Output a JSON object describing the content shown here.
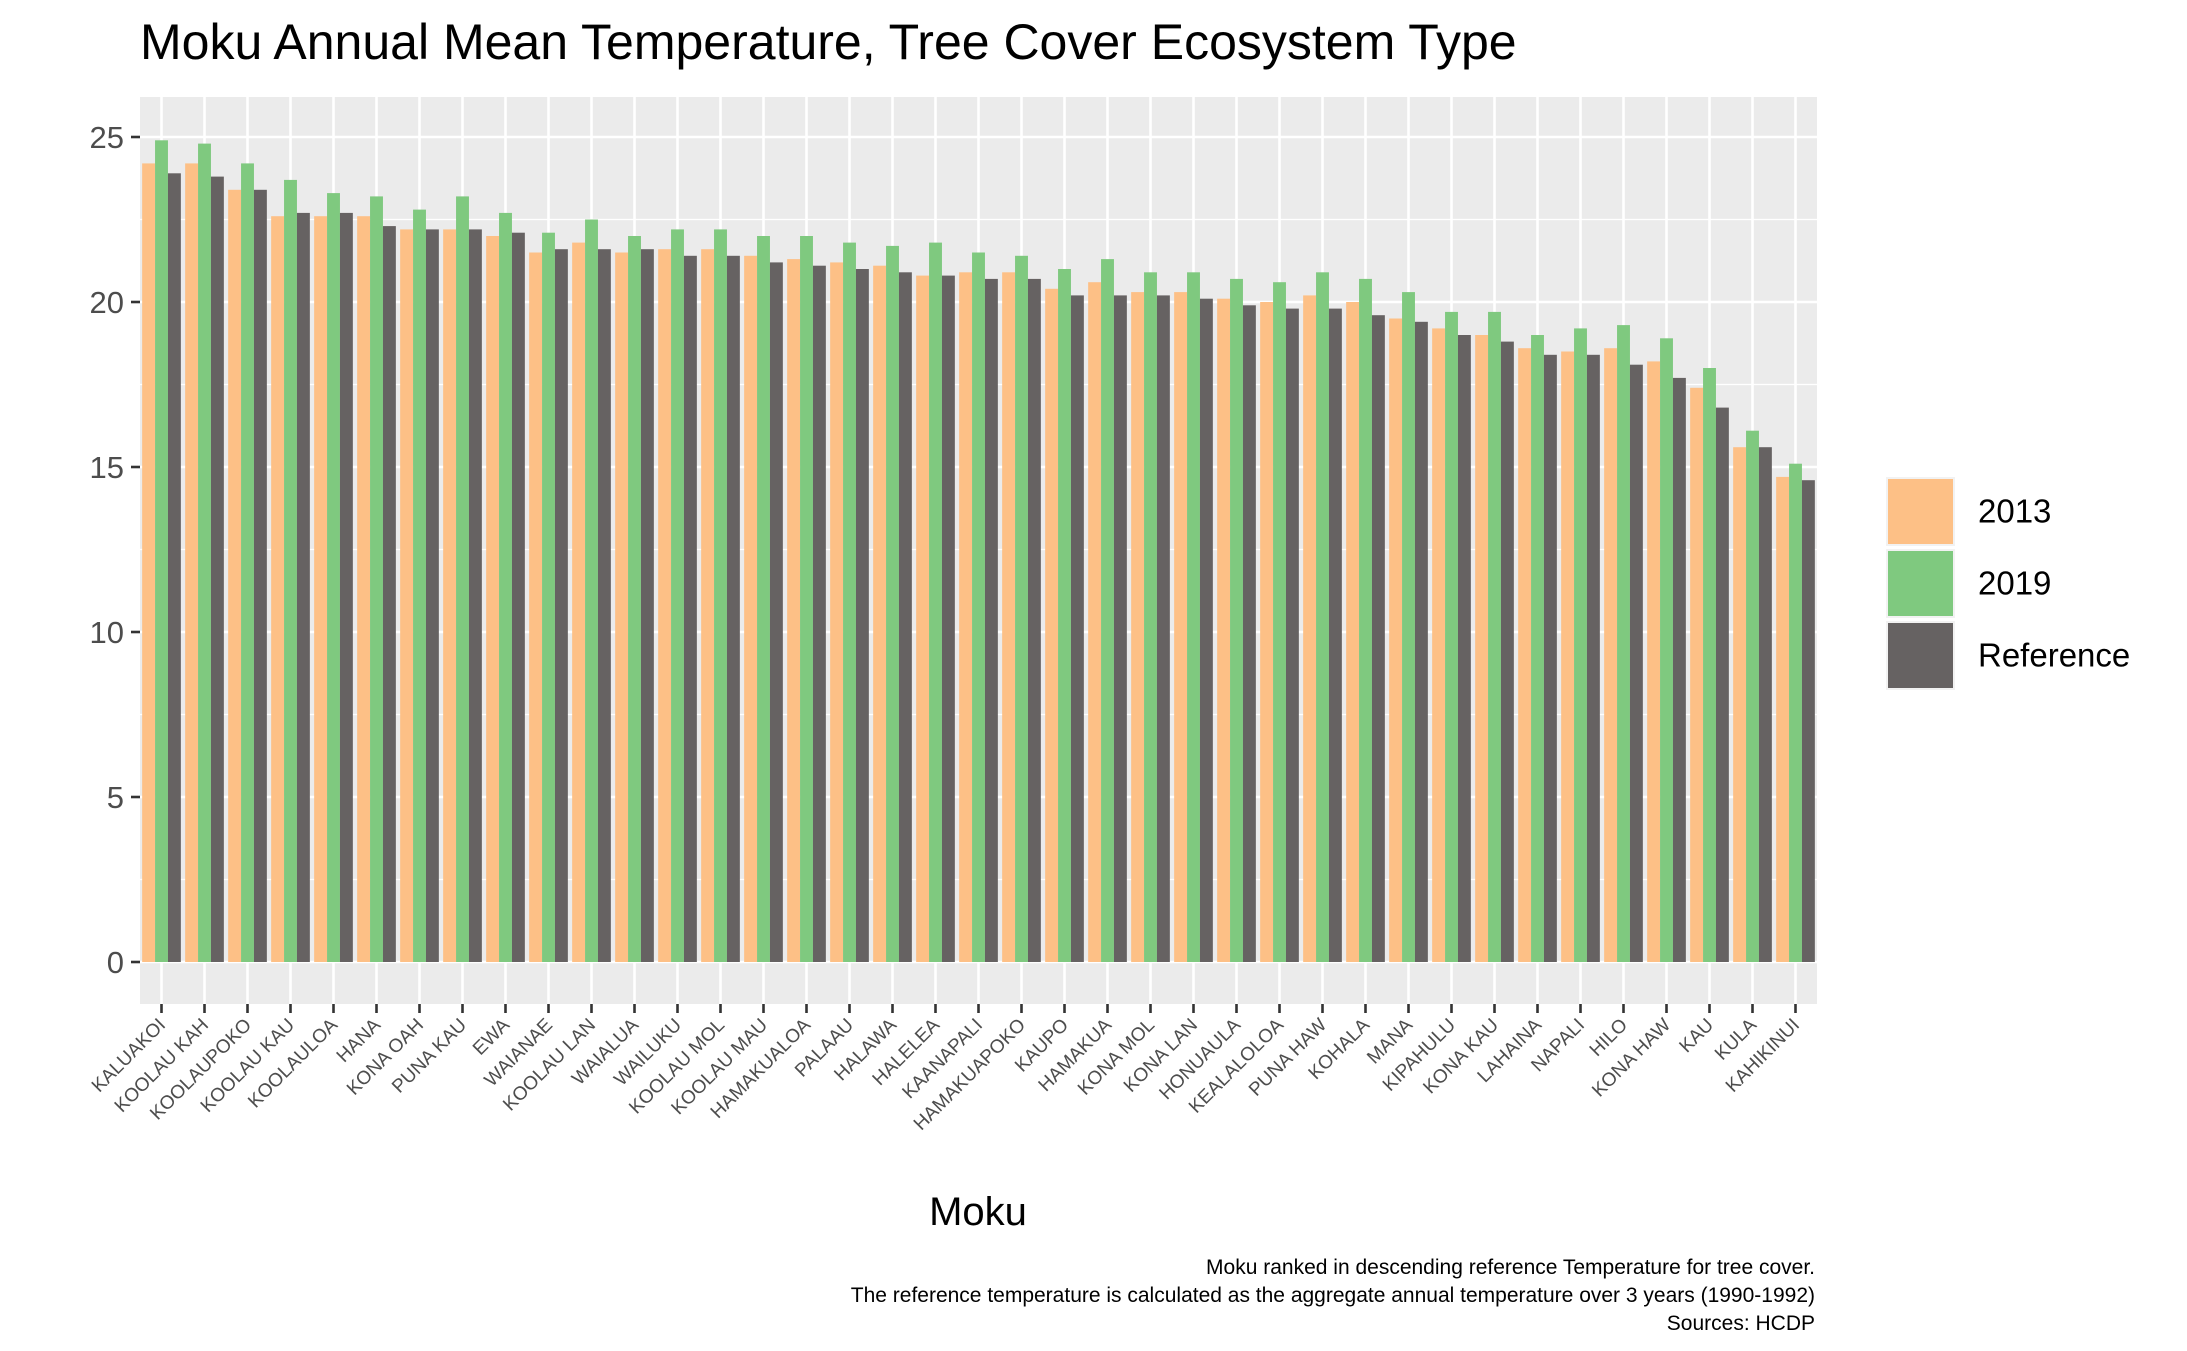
{
  "chart_data": {
    "type": "bar",
    "title": "Moku Annual Mean Temperature, Tree Cover Ecosystem Type",
    "xlabel": "Moku",
    "ylabel": "",
    "ylim": [
      0,
      26
    ],
    "y_ticks": [
      0,
      5,
      10,
      15,
      20,
      25
    ],
    "grid": true,
    "legend_position": "right",
    "categories": [
      "KALUAKOI",
      "KOOLAU KAH",
      "KOOLAUPOKO",
      "KOOLAU KAU",
      "KOOLAULOA",
      "HANA",
      "KONA OAH",
      "PUNA KAU",
      "EWA",
      "WAIANAE",
      "KOOLAU LAN",
      "WAIALUA",
      "WAILUKU",
      "KOOLAU MOL",
      "KOOLAU MAU",
      "HAMAKUALOA",
      "PALAAU",
      "HALAWA",
      "HALELEA",
      "KAANAPALI",
      "HAMAKUAPOKO",
      "KAUPO",
      "HAMAKUA",
      "KONA MOL",
      "KONA LAN",
      "HONUAULA",
      "KEALALOLOA",
      "PUNA HAW",
      "KOHALA",
      "MANA",
      "KIPAHULU",
      "KONA KAU",
      "LAHAINA",
      "NAPALI",
      "HILO",
      "KONA HAW",
      "KAU",
      "KULA",
      "KAHIKINUI"
    ],
    "series": [
      {
        "name": "2013",
        "color": "#fdc086",
        "values": [
          24.2,
          24.2,
          23.4,
          22.6,
          22.6,
          22.6,
          22.2,
          22.2,
          22.0,
          21.5,
          21.8,
          21.5,
          21.6,
          21.6,
          21.4,
          21.3,
          21.2,
          21.1,
          20.8,
          20.9,
          20.9,
          20.4,
          20.6,
          20.3,
          20.3,
          20.1,
          20.0,
          20.2,
          20.0,
          19.5,
          19.2,
          19.0,
          18.6,
          18.5,
          18.6,
          18.2,
          17.4,
          15.6,
          14.7
        ]
      },
      {
        "name": "2019",
        "color": "#7fc97f",
        "values": [
          24.9,
          24.8,
          24.2,
          23.7,
          23.3,
          23.2,
          22.8,
          23.2,
          22.7,
          22.1,
          22.5,
          22.0,
          22.2,
          22.2,
          22.0,
          22.0,
          21.8,
          21.7,
          21.8,
          21.5,
          21.4,
          21.0,
          21.3,
          20.9,
          20.9,
          20.7,
          20.6,
          20.9,
          20.7,
          20.3,
          19.7,
          19.7,
          19.0,
          19.2,
          19.3,
          18.9,
          18.0,
          16.1,
          15.1
        ]
      },
      {
        "name": "Reference",
        "color": "#666262",
        "values": [
          23.9,
          23.8,
          23.4,
          22.7,
          22.7,
          22.3,
          22.2,
          22.2,
          22.1,
          21.6,
          21.6,
          21.6,
          21.4,
          21.4,
          21.2,
          21.1,
          21.0,
          20.9,
          20.8,
          20.7,
          20.7,
          20.2,
          20.2,
          20.2,
          20.1,
          19.9,
          19.8,
          19.8,
          19.6,
          19.4,
          19.0,
          18.8,
          18.4,
          18.4,
          18.1,
          17.7,
          16.8,
          15.6,
          14.6
        ]
      }
    ],
    "caption": [
      "Moku ranked in descending reference Temperature for tree cover.",
      "The reference temperature is calculated as the aggregate annual temperature over 3 years (1990-1992)",
      "Sources: HCDP"
    ]
  }
}
